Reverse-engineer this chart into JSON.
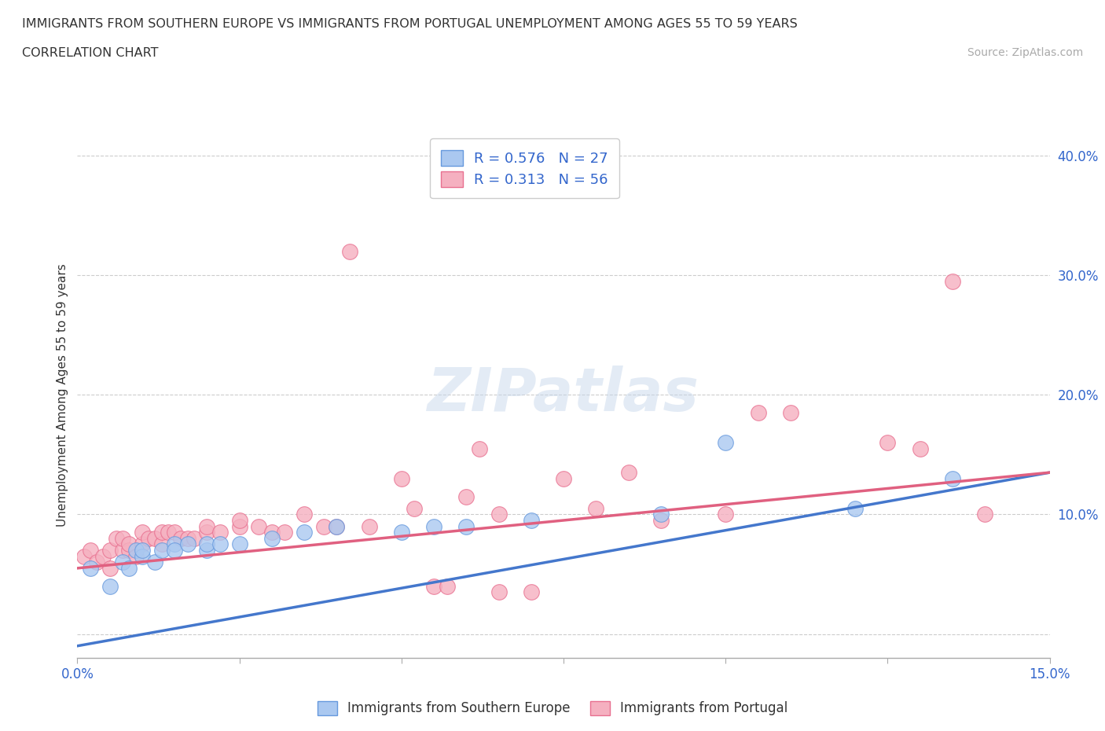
{
  "title_line1": "IMMIGRANTS FROM SOUTHERN EUROPE VS IMMIGRANTS FROM PORTUGAL UNEMPLOYMENT AMONG AGES 55 TO 59 YEARS",
  "title_line2": "CORRELATION CHART",
  "source": "Source: ZipAtlas.com",
  "ylabel": "Unemployment Among Ages 55 to 59 years",
  "xlim": [
    0.0,
    0.15
  ],
  "ylim": [
    -0.02,
    0.42
  ],
  "ytick_positions": [
    0.0,
    0.1,
    0.2,
    0.3,
    0.4
  ],
  "ytick_labels": [
    "",
    "10.0%",
    "20.0%",
    "30.0%",
    "40.0%"
  ],
  "xtick_positions": [
    0.0,
    0.025,
    0.05,
    0.075,
    0.1,
    0.125,
    0.15
  ],
  "xticklabels": [
    "0.0%",
    "",
    "",
    "",
    "",
    "",
    "15.0%"
  ],
  "R_blue": 0.576,
  "N_blue": 27,
  "R_pink": 0.313,
  "N_pink": 56,
  "color_blue": "#aac8f0",
  "color_blue_edge": "#6699dd",
  "color_blue_line": "#4477cc",
  "color_pink": "#f5b0c0",
  "color_pink_edge": "#e87090",
  "color_pink_line": "#e06080",
  "legend_label_blue": "Immigrants from Southern Europe",
  "legend_label_pink": "Immigrants from Portugal",
  "watermark": "ZIPatlas",
  "blue_scatter_x": [
    0.002,
    0.005,
    0.007,
    0.008,
    0.009,
    0.01,
    0.01,
    0.012,
    0.013,
    0.015,
    0.015,
    0.017,
    0.02,
    0.02,
    0.022,
    0.025,
    0.03,
    0.035,
    0.04,
    0.05,
    0.055,
    0.06,
    0.07,
    0.09,
    0.1,
    0.12,
    0.135
  ],
  "blue_scatter_y": [
    0.055,
    0.04,
    0.06,
    0.055,
    0.07,
    0.065,
    0.07,
    0.06,
    0.07,
    0.075,
    0.07,
    0.075,
    0.07,
    0.075,
    0.075,
    0.075,
    0.08,
    0.085,
    0.09,
    0.085,
    0.09,
    0.09,
    0.095,
    0.1,
    0.16,
    0.105,
    0.13
  ],
  "pink_scatter_x": [
    0.001,
    0.002,
    0.003,
    0.004,
    0.005,
    0.005,
    0.006,
    0.007,
    0.007,
    0.008,
    0.008,
    0.009,
    0.01,
    0.01,
    0.011,
    0.012,
    0.013,
    0.013,
    0.014,
    0.015,
    0.016,
    0.017,
    0.018,
    0.02,
    0.02,
    0.022,
    0.025,
    0.025,
    0.028,
    0.03,
    0.032,
    0.035,
    0.038,
    0.04,
    0.042,
    0.045,
    0.05,
    0.052,
    0.055,
    0.057,
    0.06,
    0.062,
    0.065,
    0.065,
    0.07,
    0.075,
    0.08,
    0.085,
    0.09,
    0.1,
    0.105,
    0.11,
    0.125,
    0.13,
    0.135,
    0.14
  ],
  "pink_scatter_y": [
    0.065,
    0.07,
    0.06,
    0.065,
    0.055,
    0.07,
    0.08,
    0.07,
    0.08,
    0.07,
    0.075,
    0.065,
    0.075,
    0.085,
    0.08,
    0.08,
    0.075,
    0.085,
    0.085,
    0.085,
    0.08,
    0.08,
    0.08,
    0.085,
    0.09,
    0.085,
    0.09,
    0.095,
    0.09,
    0.085,
    0.085,
    0.1,
    0.09,
    0.09,
    0.32,
    0.09,
    0.13,
    0.105,
    0.04,
    0.04,
    0.115,
    0.155,
    0.035,
    0.1,
    0.035,
    0.13,
    0.105,
    0.135,
    0.095,
    0.1,
    0.185,
    0.185,
    0.16,
    0.155,
    0.295,
    0.1
  ],
  "blue_line_x": [
    0.0,
    0.15
  ],
  "blue_line_y": [
    -0.01,
    0.135
  ],
  "pink_line_x": [
    0.0,
    0.15
  ],
  "pink_line_y": [
    0.055,
    0.135
  ]
}
